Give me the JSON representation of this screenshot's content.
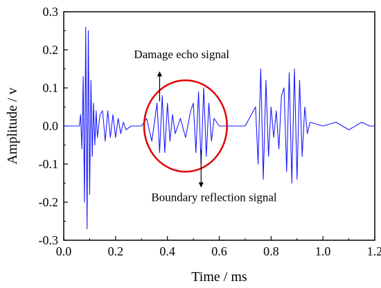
{
  "chart_data": {
    "type": "line",
    "title": "",
    "xlabel": "Time / ms",
    "ylabel": "Amplitude / v",
    "xlim": [
      0.0,
      1.2
    ],
    "ylim": [
      -0.3,
      0.3
    ],
    "x_ticks": [
      0.0,
      0.2,
      0.4,
      0.6,
      0.8,
      1.0,
      1.2
    ],
    "x_tick_labels": [
      "0.0",
      "0.2",
      "0.4",
      "0.6",
      "0.8",
      "1.0",
      "1.2"
    ],
    "y_ticks": [
      -0.3,
      -0.2,
      -0.1,
      0.0,
      0.1,
      0.2,
      0.3
    ],
    "y_tick_labels": [
      "-0.3",
      "-0.2",
      "-0.1",
      "0.0",
      "0.1",
      "0.2",
      "0.3"
    ],
    "grid": false,
    "line_color": "#1a1aff",
    "highlight_color": "#e00000",
    "series": [
      {
        "x": [
          0.0,
          0.06,
          0.065,
          0.07,
          0.075,
          0.08,
          0.085,
          0.09,
          0.095,
          0.1,
          0.105,
          0.11,
          0.115,
          0.12,
          0.125,
          0.13,
          0.14,
          0.15,
          0.16,
          0.17,
          0.18,
          0.19,
          0.2,
          0.21,
          0.22,
          0.23,
          0.24,
          0.26,
          0.3,
          0.32,
          0.34,
          0.36,
          0.37,
          0.38,
          0.39,
          0.4,
          0.41,
          0.42,
          0.43,
          0.45,
          0.47,
          0.49,
          0.5,
          0.51,
          0.52,
          0.53,
          0.54,
          0.55,
          0.56,
          0.57,
          0.58,
          0.6,
          0.65,
          0.7,
          0.74,
          0.75,
          0.76,
          0.77,
          0.78,
          0.79,
          0.8,
          0.81,
          0.82,
          0.83,
          0.84,
          0.85,
          0.86,
          0.87,
          0.88,
          0.89,
          0.9,
          0.91,
          0.92,
          0.93,
          0.94,
          0.95,
          1.0,
          1.05,
          1.1,
          1.15,
          1.18,
          1.2
        ],
        "y": [
          0.0,
          0.0,
          0.03,
          -0.06,
          0.13,
          -0.2,
          0.26,
          -0.27,
          0.25,
          -0.18,
          0.12,
          -0.08,
          0.06,
          -0.05,
          0.04,
          -0.03,
          0.03,
          0.04,
          -0.04,
          0.04,
          -0.03,
          0.03,
          -0.03,
          0.02,
          -0.02,
          0.01,
          -0.01,
          0.0,
          0.0,
          0.02,
          -0.04,
          0.06,
          -0.07,
          0.08,
          -0.07,
          0.06,
          -0.04,
          0.03,
          -0.02,
          0.02,
          -0.03,
          0.04,
          0.06,
          -0.07,
          0.09,
          -0.1,
          0.1,
          -0.08,
          0.06,
          -0.04,
          0.02,
          0.0,
          0.0,
          0.0,
          0.05,
          -0.1,
          0.15,
          -0.14,
          0.12,
          -0.08,
          0.05,
          -0.03,
          0.04,
          -0.06,
          0.08,
          0.1,
          -0.12,
          0.14,
          -0.15,
          0.15,
          -0.14,
          0.12,
          -0.08,
          0.05,
          -0.02,
          0.01,
          0.0,
          0.01,
          -0.01,
          0.01,
          0.0,
          0.0
        ]
      }
    ],
    "annotations": [
      {
        "text": "Damage echo signal",
        "target": [
          0.37,
          0.09
        ]
      },
      {
        "text": "Boundary reflection signal",
        "target": [
          0.53,
          -0.08
        ]
      }
    ],
    "highlight_ellipse": {
      "center": [
        0.47,
        0.0
      ],
      "rx": 0.16,
      "ry": 0.12
    }
  }
}
